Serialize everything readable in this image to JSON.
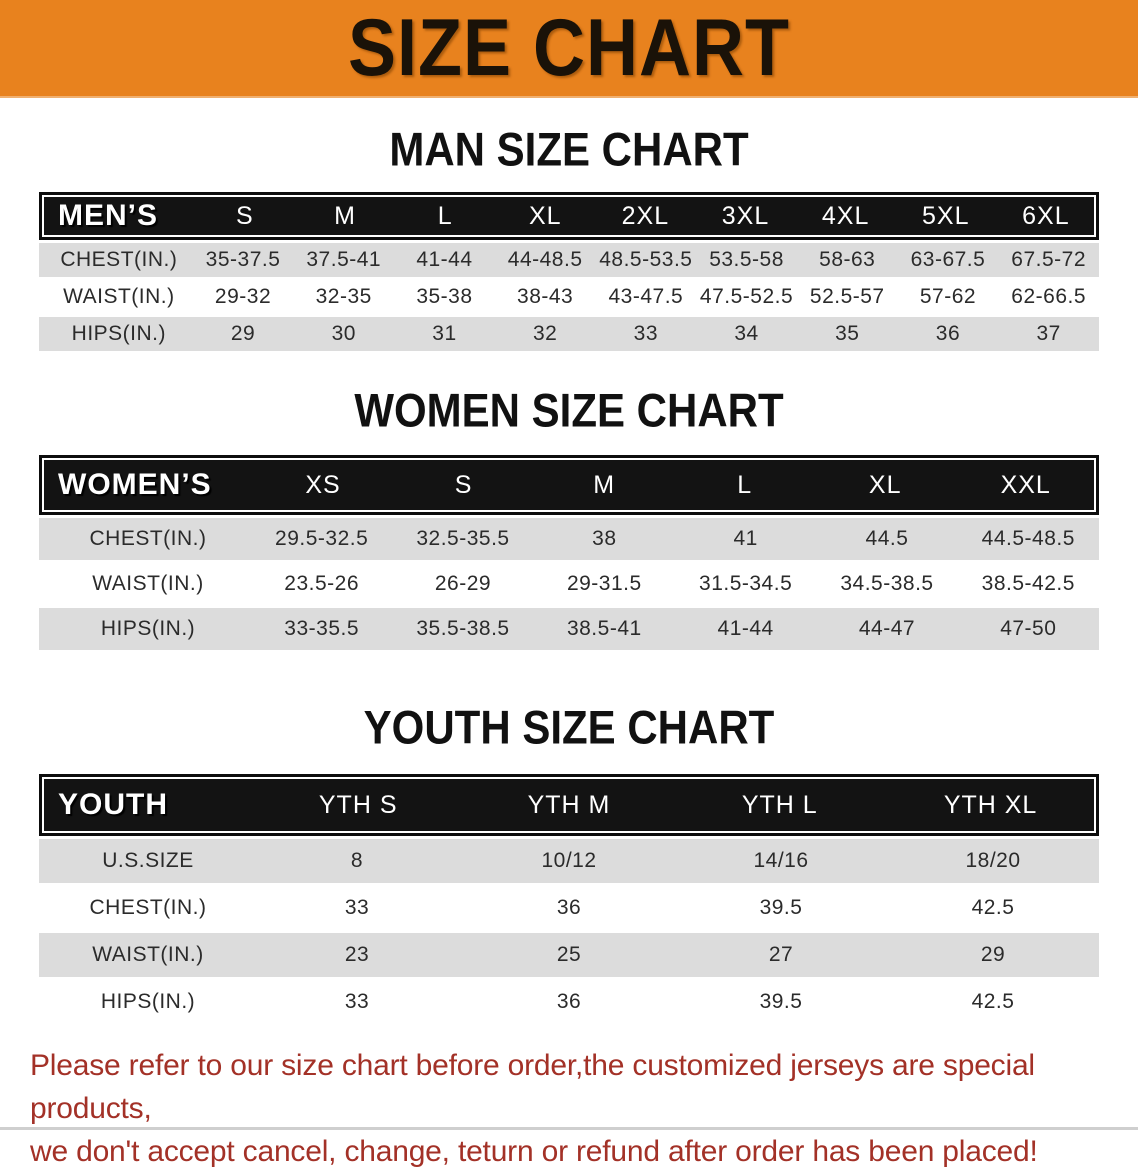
{
  "banner": {
    "title": "SIZE CHART"
  },
  "sections": [
    {
      "id": "men",
      "heading": "MAN SIZE CHART",
      "table": {
        "label": "MEN’S",
        "columns": [
          "S",
          "M",
          "L",
          "XL",
          "2XL",
          "3XL",
          "4XL",
          "5XL",
          "6XL"
        ],
        "rows": [
          {
            "label": "CHEST(IN.)",
            "values": [
              "35-37.5",
              "37.5-41",
              "41-44",
              "44-48.5",
              "48.5-53.5",
              "53.5-58",
              "58-63",
              "63-67.5",
              "67.5-72"
            ]
          },
          {
            "label": "WAIST(IN.)",
            "values": [
              "29-32",
              "32-35",
              "35-38",
              "38-43",
              "43-47.5",
              "47.5-52.5",
              "52.5-57",
              "57-62",
              "62-66.5"
            ]
          },
          {
            "label": "HIPS(IN.)",
            "values": [
              "29",
              "30",
              "31",
              "32",
              "33",
              "34",
              "35",
              "36",
              "37"
            ]
          }
        ]
      }
    },
    {
      "id": "women",
      "heading": "WOMEN SIZE CHART",
      "table": {
        "label": "WOMEN’S",
        "columns": [
          "XS",
          "S",
          "M",
          "L",
          "XL",
          "XXL"
        ],
        "rows": [
          {
            "label": "CHEST(IN.)",
            "values": [
              "29.5-32.5",
              "32.5-35.5",
              "38",
              "41",
              "44.5",
              "44.5-48.5"
            ]
          },
          {
            "label": "WAIST(IN.)",
            "values": [
              "23.5-26",
              "26-29",
              "29-31.5",
              "31.5-34.5",
              "34.5-38.5",
              "38.5-42.5"
            ]
          },
          {
            "label": "HIPS(IN.)",
            "values": [
              "33-35.5",
              "35.5-38.5",
              "38.5-41",
              "41-44",
              "44-47",
              "47-50"
            ]
          }
        ]
      }
    },
    {
      "id": "youth",
      "heading": "YOUTH SIZE CHART",
      "table": {
        "label": "YOUTH",
        "columns": [
          "YTH S",
          "YTH M",
          "YTH L",
          "YTH XL"
        ],
        "rows": [
          {
            "label": "U.S.SIZE",
            "values": [
              "8",
              "10/12",
              "14/16",
              "18/20"
            ]
          },
          {
            "label": "CHEST(IN.)",
            "values": [
              "33",
              "36",
              "39.5",
              "42.5"
            ]
          },
          {
            "label": "WAIST(IN.)",
            "values": [
              "23",
              "25",
              "27",
              "29"
            ]
          },
          {
            "label": "HIPS(IN.)",
            "values": [
              "33",
              "36",
              "39.5",
              "42.5"
            ]
          }
        ]
      }
    }
  ],
  "footer": {
    "line1": "Please refer to our size chart before order,the customized jerseys are special products,",
    "line2": "we don't accept cancel, change, teturn or refund after order has been placed!"
  },
  "colors": {
    "accent_orange": "#E8821E",
    "header_black": "#131313",
    "row_gray": "#DCDCDC",
    "footer_red": "#A33127"
  }
}
